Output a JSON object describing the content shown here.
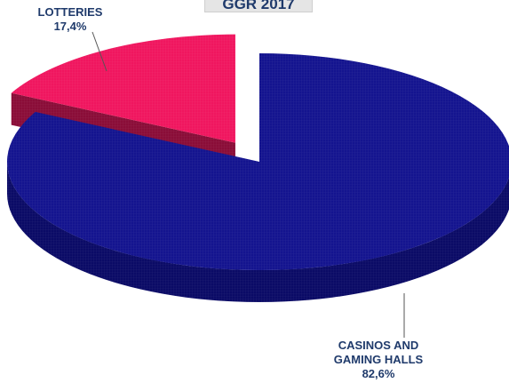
{
  "chart_data": {
    "type": "pie",
    "title": "GGR 2017",
    "slices": [
      {
        "name": "CASINOS AND GAMING HALLS",
        "label_lines": [
          "CASINOS AND",
          "GAMING HALLS"
        ],
        "value": 82.6,
        "value_text": "82,6%",
        "color": "#14148f"
      },
      {
        "name": "LOTTERIES",
        "label_lines": [
          "LOTTERIES"
        ],
        "value": 17.4,
        "value_text": "17,4%",
        "color": "#f0165f"
      }
    ],
    "exploded": "LOTTERIES",
    "style": "3d"
  },
  "colors": {
    "label_text": "#1f3a6b",
    "title_bg": "#e5e5e5",
    "casinos_side": "#0b0b66",
    "lotteries_side": "#8a0d38"
  }
}
